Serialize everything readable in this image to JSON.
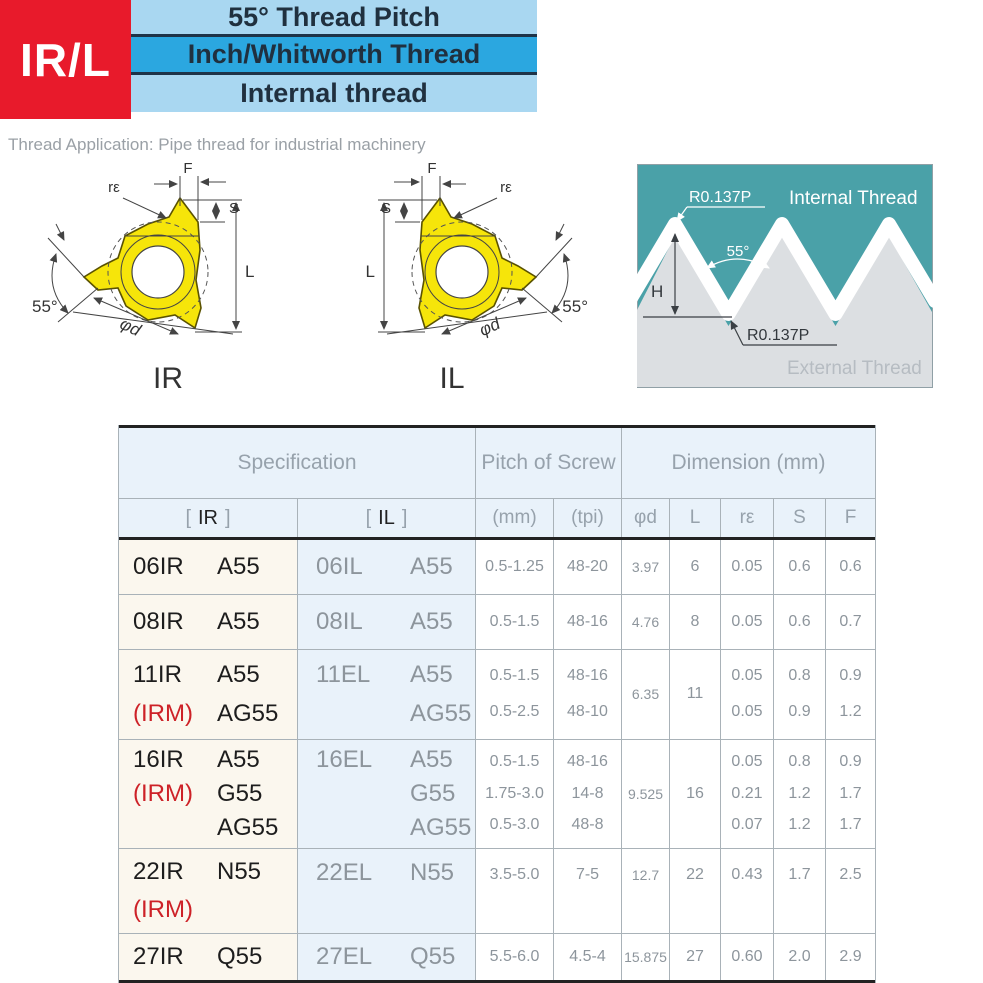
{
  "header": {
    "badge": "IR/L",
    "bar1": "55° Thread Pitch",
    "bar2": "Inch/Whitworth Thread",
    "bar3": "Internal thread",
    "application": "Thread Application: Pipe thread for industrial machinery"
  },
  "colors": {
    "badge_red": "#e81a2b",
    "bar_light_blue": "#a9d7f1",
    "bar_blue": "#2ba7e0",
    "insert_yellow": "#f6e50a",
    "profile_teal": "#4aa1a8",
    "irm_red": "#cd2127",
    "table_header_blue": "#e9f2fa",
    "ir_column_cream": "#fbf7ee"
  },
  "diagrams": {
    "ir_label": "IR",
    "il_label": "IL",
    "dims": {
      "f": "F",
      "s": "S",
      "l": "L",
      "re": "rε",
      "angle": "55°",
      "phid": "φd"
    },
    "profile": {
      "internal": "Internal Thread",
      "external": "External Thread",
      "radius_top": "R0.137P",
      "radius_bottom": "R0.137P",
      "angle": "55°",
      "height": "H"
    }
  },
  "table": {
    "header": {
      "specification": "Specification",
      "pitch_of_screw": "Pitch of Screw",
      "dimension": "Dimension (mm)",
      "bracket_open": "[",
      "bracket_close": "]",
      "ir": "IR",
      "il": "IL",
      "mm": "(mm)",
      "tpi": "(tpi)",
      "dim_cols": [
        "φd",
        "L",
        "rε",
        "S",
        "F"
      ]
    },
    "rows": [
      {
        "ir": [
          [
            "06IR",
            "A55"
          ]
        ],
        "il": [
          [
            "06IL",
            "A55"
          ]
        ],
        "mm": [
          "0.5-1.25"
        ],
        "tpi": [
          "48-20"
        ],
        "phid": [
          "3.97"
        ],
        "L": [
          "6"
        ],
        "re": [
          "0.05"
        ],
        "s": [
          "0.6"
        ],
        "f": [
          "0.6"
        ]
      },
      {
        "ir": [
          [
            "08IR",
            "A55"
          ]
        ],
        "il": [
          [
            "08IL",
            "A55"
          ]
        ],
        "mm": [
          "0.5-1.5"
        ],
        "tpi": [
          "48-16"
        ],
        "phid": [
          "4.76"
        ],
        "L": [
          "8"
        ],
        "re": [
          "0.05"
        ],
        "s": [
          "0.6"
        ],
        "f": [
          "0.7"
        ]
      },
      {
        "ir": [
          [
            "11IR",
            "A55"
          ],
          [
            "(IRM)",
            "AG55"
          ]
        ],
        "il": [
          [
            "11EL",
            "A55"
          ],
          [
            "",
            "AG55"
          ]
        ],
        "mm": [
          "0.5-1.5",
          "0.5-2.5"
        ],
        "tpi": [
          "48-16",
          "48-10"
        ],
        "phid": [
          "6.35"
        ],
        "L": [
          "11"
        ],
        "re": [
          "0.05",
          "0.05"
        ],
        "s": [
          "0.8",
          "0.9"
        ],
        "f": [
          "0.9",
          "1.2"
        ]
      },
      {
        "ir": [
          [
            "16IR",
            "A55"
          ],
          [
            "(IRM)",
            "G55"
          ],
          [
            "",
            "AG55"
          ]
        ],
        "il": [
          [
            "16EL",
            "A55"
          ],
          [
            "",
            "G55"
          ],
          [
            "",
            "AG55"
          ]
        ],
        "mm": [
          "0.5-1.5",
          "1.75-3.0",
          "0.5-3.0"
        ],
        "tpi": [
          "48-16",
          "14-8",
          "48-8"
        ],
        "phid": [
          "9.525"
        ],
        "L": [
          "16"
        ],
        "re": [
          "0.05",
          "0.21",
          "0.07"
        ],
        "s": [
          "0.8",
          "1.2",
          "1.2"
        ],
        "f": [
          "0.9",
          "1.7",
          "1.7"
        ]
      },
      {
        "ir": [
          [
            "22IR",
            "N55"
          ],
          [
            "(IRM)",
            ""
          ]
        ],
        "il": [
          [
            "22EL",
            "N55"
          ],
          [
            "",
            ""
          ]
        ],
        "mm": [
          "3.5-5.0",
          ""
        ],
        "tpi": [
          "7-5",
          ""
        ],
        "phid": [
          "12.7",
          ""
        ],
        "L": [
          "22",
          ""
        ],
        "re": [
          "0.43",
          ""
        ],
        "s": [
          "1.7",
          ""
        ],
        "f": [
          "2.5",
          ""
        ]
      },
      {
        "ir": [
          [
            "27IR",
            "Q55"
          ]
        ],
        "il": [
          [
            "27EL",
            "Q55"
          ]
        ],
        "mm": [
          "5.5-6.0"
        ],
        "tpi": [
          "4.5-4"
        ],
        "phid": [
          "15.875"
        ],
        "L": [
          "27"
        ],
        "re": [
          "0.60"
        ],
        "s": [
          "2.0"
        ],
        "f": [
          "2.9"
        ]
      }
    ]
  }
}
